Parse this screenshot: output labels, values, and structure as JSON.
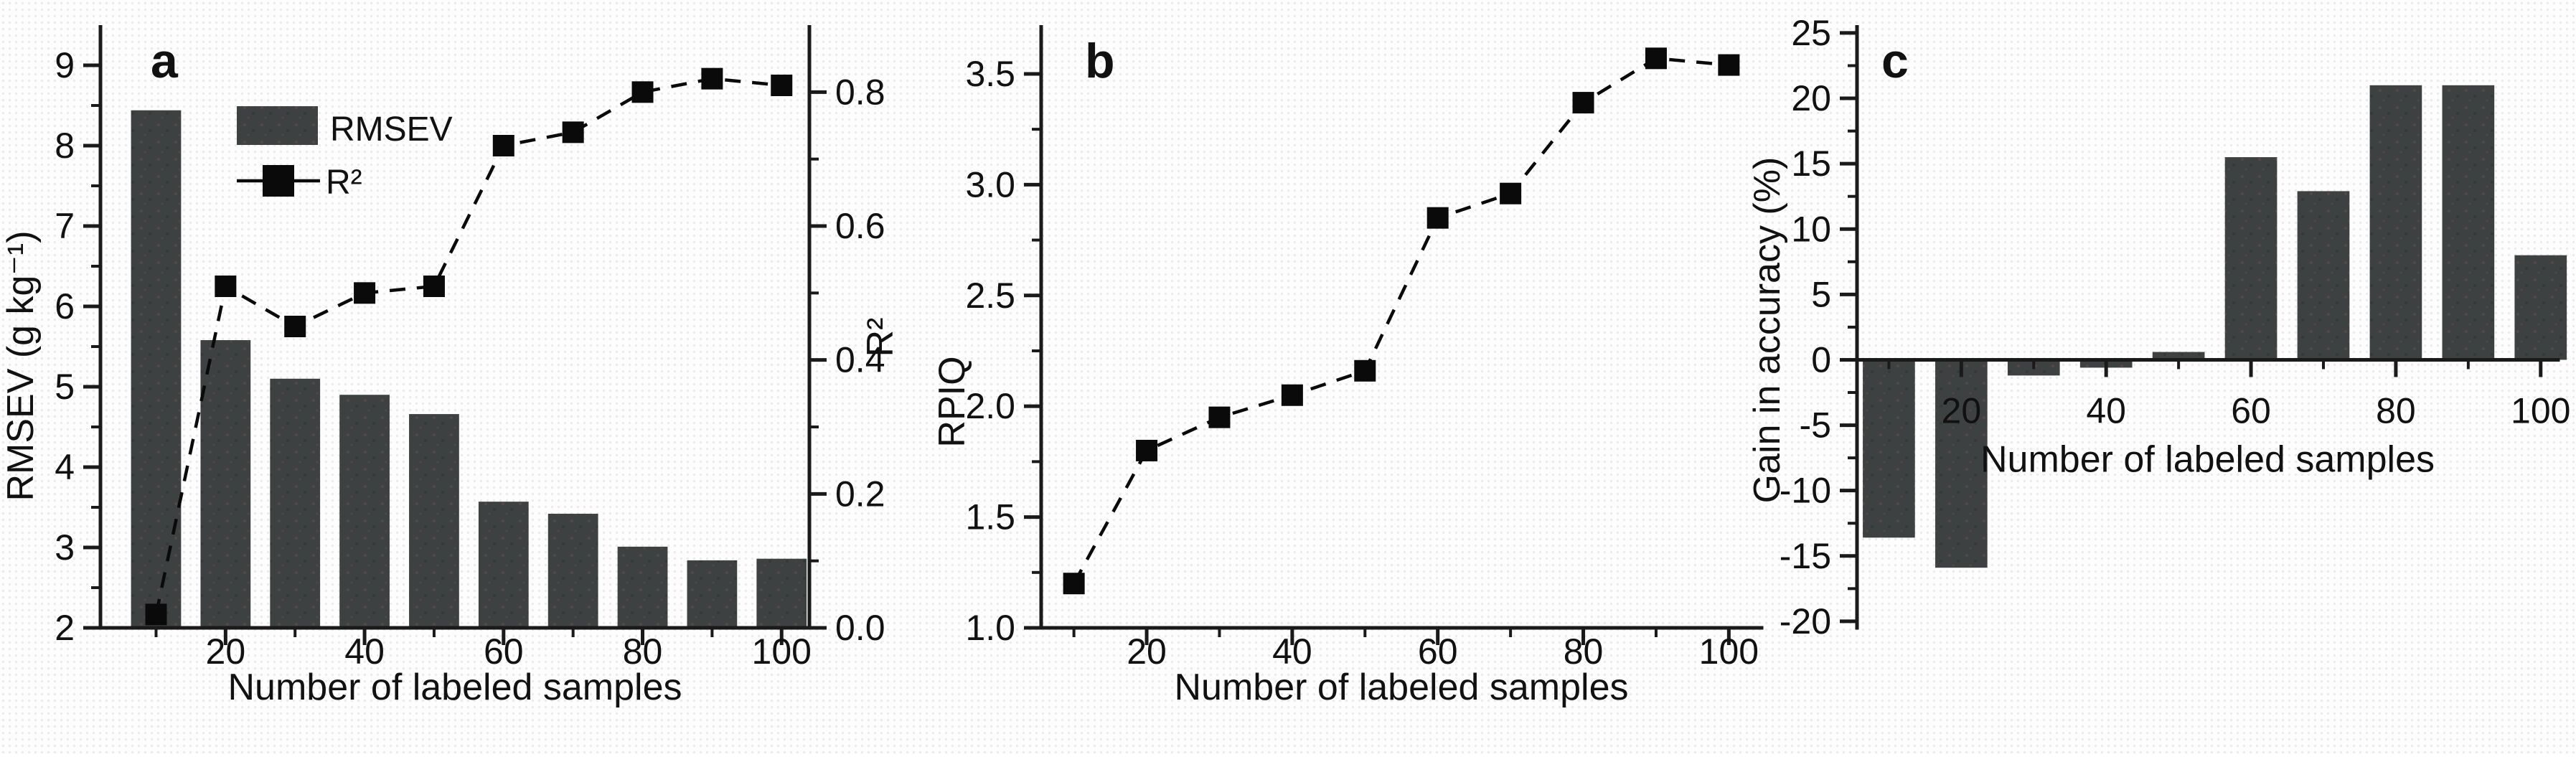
{
  "figure_title": "",
  "colors": {
    "bar_fill": "#3e4142",
    "bar_speck_warm": "#5d4a45",
    "bar_speck_cool": "#2e3c38",
    "axis": "#1a1a1a",
    "line_series": "#0a0a0a",
    "text": "#111111",
    "background": "#fdfdfd"
  },
  "chart_data": [
    {
      "id": "a",
      "panel_label": "a",
      "type": "bar",
      "categories": [
        10,
        20,
        30,
        40,
        50,
        60,
        70,
        80,
        90,
        100
      ],
      "x_axis": {
        "title": "Number of labeled samples",
        "major_ticks": [
          20,
          40,
          60,
          80,
          100
        ],
        "minor_ticks": [
          10,
          30,
          50,
          70,
          90
        ],
        "xlim": [
          2,
          104
        ]
      },
      "y_left": {
        "title": "RMSEV (g kg⁻¹)",
        "major_ticks": [
          2,
          3,
          4,
          5,
          6,
          7,
          8,
          9
        ],
        "tick_labels": [
          "2",
          "3",
          "4",
          "5",
          "6",
          "7",
          "8",
          "9"
        ],
        "minor_ticks": [
          2.5,
          3.5,
          4.5,
          5.5,
          6.5,
          7.5,
          8.5
        ],
        "ylim": [
          2,
          9.5
        ],
        "grid": false
      },
      "y_right": {
        "title": "R²",
        "major_ticks": [
          0.0,
          0.2,
          0.4,
          0.6,
          0.8
        ],
        "tick_labels": [
          "0.0",
          "0.2",
          "0.4",
          "0.6",
          "0.8"
        ],
        "minor_ticks": [
          0.1,
          0.3,
          0.5,
          0.7
        ],
        "ylim": [
          0,
          0.9
        ],
        "grid": false
      },
      "series": [
        {
          "name": "RMSEV",
          "type": "bar",
          "axis": "left",
          "values": [
            8.44,
            5.58,
            5.1,
            4.9,
            4.66,
            3.57,
            3.42,
            3.01,
            2.84,
            2.86
          ]
        },
        {
          "name": "R²",
          "type": "line",
          "axis": "right",
          "marker": "square",
          "line_style": "dashed",
          "values": [
            0.02,
            0.51,
            0.45,
            0.5,
            0.51,
            0.72,
            0.74,
            0.8,
            0.82,
            0.81
          ]
        }
      ],
      "legend": {
        "position": "upper-left-inside",
        "items": [
          "RMSEV",
          "R²"
        ]
      }
    },
    {
      "id": "b",
      "panel_label": "b",
      "type": "line",
      "categories": [
        10,
        20,
        30,
        40,
        50,
        60,
        70,
        80,
        90,
        100
      ],
      "x_axis": {
        "title": "Number of labeled samples",
        "major_ticks": [
          20,
          40,
          60,
          80,
          100
        ],
        "minor_ticks": [
          10,
          30,
          50,
          70,
          90
        ],
        "xlim": [
          5.5,
          104.5
        ]
      },
      "y_left": {
        "title": "RPIQ",
        "major_ticks": [
          1.0,
          1.5,
          2.0,
          2.5,
          3.0,
          3.5
        ],
        "tick_labels": [
          "1.0",
          "1.5",
          "2.0",
          "2.5",
          "3.0",
          "3.5"
        ],
        "minor_ticks": [
          1.25,
          1.75,
          2.25,
          2.75,
          3.25
        ],
        "ylim": [
          1.0,
          3.72
        ],
        "grid": false
      },
      "series": [
        {
          "name": "RPIQ",
          "type": "line",
          "axis": "left",
          "marker": "square",
          "line_style": "dashed",
          "values": [
            1.2,
            1.8,
            1.95,
            2.05,
            2.16,
            2.85,
            2.96,
            3.37,
            3.57,
            3.54
          ]
        }
      ],
      "legend": {
        "position": "none",
        "items": []
      }
    },
    {
      "id": "c",
      "panel_label": "c",
      "type": "bar",
      "categories": [
        10,
        20,
        30,
        40,
        50,
        60,
        70,
        80,
        90,
        100
      ],
      "x_axis": {
        "title": "Number of labeled samples",
        "major_ticks": [
          20,
          40,
          60,
          80,
          100
        ],
        "minor_ticks": [
          10,
          30,
          50,
          70,
          90
        ],
        "xlim": [
          5.6,
          102.4
        ],
        "axis_at_zero": true
      },
      "y_left": {
        "title": "Gain in accuracy (%)",
        "major_ticks": [
          -20,
          -15,
          -10,
          -5,
          0,
          5,
          10,
          15,
          20,
          25
        ],
        "tick_labels": [
          "-20",
          "-15",
          "-10",
          "-5",
          "0",
          "5",
          "10",
          "15",
          "20",
          "25"
        ],
        "minor_ticks": [
          -17.5,
          -12.5,
          -7.5,
          -2.5,
          2.5,
          7.5,
          12.5,
          17.5,
          22.5
        ],
        "ylim": [
          -20.5,
          25.6
        ],
        "grid": false
      },
      "series": [
        {
          "name": "Gain in accuracy",
          "type": "bar",
          "axis": "left",
          "values": [
            -13.6,
            -15.9,
            -1.2,
            -0.6,
            0.6,
            15.5,
            12.9,
            21.0,
            21.0,
            8.0
          ]
        }
      ],
      "legend": {
        "position": "none",
        "items": []
      }
    }
  ]
}
